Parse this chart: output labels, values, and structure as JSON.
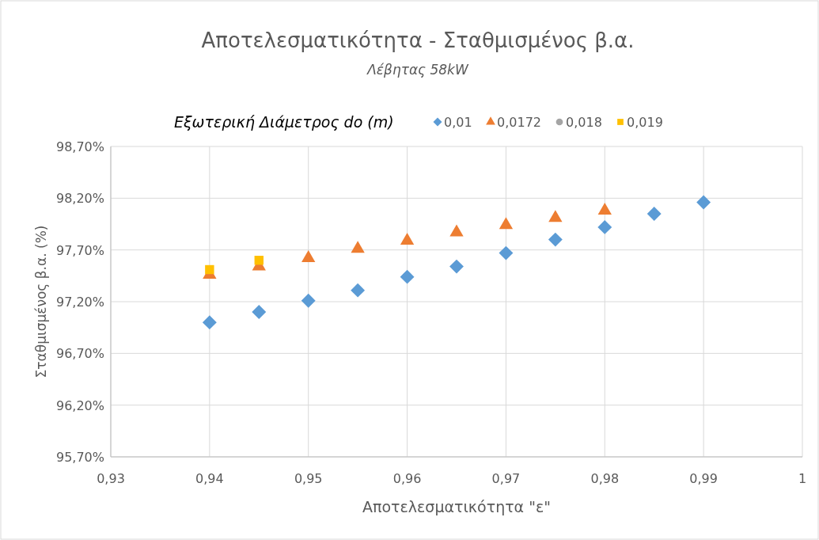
{
  "chart_data": {
    "type": "scatter",
    "title": "Αποτελεσματικότητα - Σταθμισμένος β.α.",
    "subtitle": "Λέβητας 58kW",
    "xlabel": "Αποτελεσματικότητα \"ε\"",
    "ylabel": "Σταθμισμένος β.α. (%)",
    "legend_title": "Εξωτερική Διάμετρος  do (m)",
    "legend": "top",
    "grid": true,
    "xlim": [
      0.93,
      1
    ],
    "xticks": [
      {
        "value": 0.93,
        "label": "0,93"
      },
      {
        "value": 0.94,
        "label": "0,94"
      },
      {
        "value": 0.95,
        "label": "0,95"
      },
      {
        "value": 0.96,
        "label": "0,96"
      },
      {
        "value": 0.97,
        "label": "0,97"
      },
      {
        "value": 0.98,
        "label": "0,98"
      },
      {
        "value": 0.99,
        "label": "0,99"
      },
      {
        "value": 1,
        "label": "1"
      }
    ],
    "ylim": [
      95.7,
      98.7
    ],
    "yticks": [
      {
        "value": 95.7,
        "label": "95,70%"
      },
      {
        "value": 96.2,
        "label": "96,20%"
      },
      {
        "value": 96.7,
        "label": "96,70%"
      },
      {
        "value": 97.2,
        "label": "97,20%"
      },
      {
        "value": 97.7,
        "label": "97,70%"
      },
      {
        "value": 98.2,
        "label": "98,20%"
      },
      {
        "value": 98.7,
        "label": "98,70%"
      }
    ],
    "series": [
      {
        "name": "0,01",
        "color": "#5b9bd5",
        "marker": "diamond",
        "x": [
          0.94,
          0.945,
          0.95,
          0.955,
          0.96,
          0.965,
          0.97,
          0.975,
          0.98,
          0.985,
          0.99
        ],
        "values": [
          97.0,
          97.1,
          97.21,
          97.31,
          97.44,
          97.54,
          97.67,
          97.8,
          97.92,
          98.05,
          98.16
        ]
      },
      {
        "name": "0,0172",
        "color": "#ed7d31",
        "marker": "triangle",
        "x": [
          0.94,
          0.945,
          0.95,
          0.955,
          0.96,
          0.965,
          0.97,
          0.975,
          0.98
        ],
        "values": [
          97.46,
          97.54,
          97.62,
          97.71,
          97.79,
          97.87,
          97.94,
          98.01,
          98.08
        ]
      },
      {
        "name": "0,018",
        "color": "#a5a5a5",
        "marker": "circle"
      },
      {
        "name": "0,019",
        "color": "#ffc000",
        "marker": "square",
        "x": [
          0.94,
          0.945
        ],
        "values": [
          97.51,
          97.6
        ]
      }
    ]
  }
}
